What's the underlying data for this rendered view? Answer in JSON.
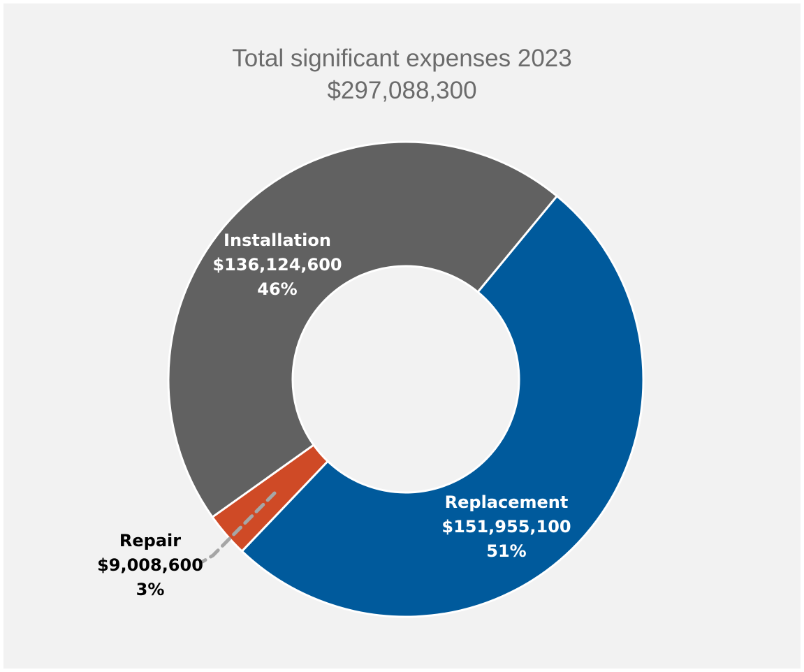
{
  "chart_data": {
    "type": "pie",
    "donut": true,
    "title": "Total significant expenses 2023",
    "subtitle": "$297,088,300",
    "slices": [
      {
        "name": "Replacement",
        "amount_label": "$151,955,100",
        "percent_label": "51%",
        "value": 151955100,
        "color": "#005a9c",
        "label_color": "#ffffff"
      },
      {
        "name": "Repair",
        "amount_label": "$9,008,600",
        "percent_label": "3%",
        "value": 9008600,
        "color": "#cf4a26",
        "label_color": "#000000"
      },
      {
        "name": "Installation",
        "amount_label": "$136,124,600",
        "percent_label": "46%",
        "value": 136124600,
        "color": "#616161",
        "label_color": "#ffffff"
      }
    ],
    "background_color": "#f2f2f2",
    "leader_line_color": "#a6a6a6"
  }
}
